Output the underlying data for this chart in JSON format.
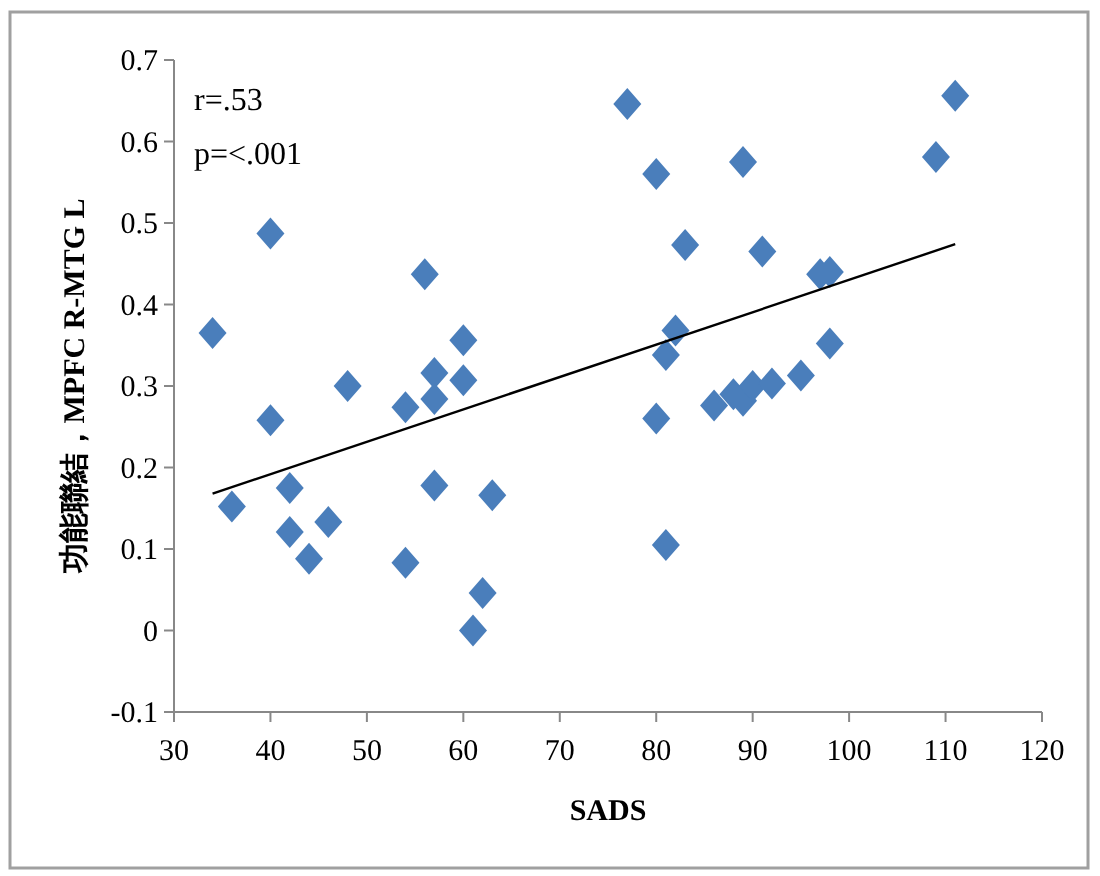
{
  "chart_data": {
    "type": "scatter",
    "xlabel": "SADS",
    "ylabel": "功能聯結，MPFC R-MTG L",
    "annotations": [
      "r=.53",
      "p=<.001"
    ],
    "xlim": [
      30,
      120
    ],
    "xticks": [
      30,
      40,
      50,
      60,
      70,
      80,
      90,
      100,
      110,
      120
    ],
    "ylim": [
      -0.1,
      0.7
    ],
    "yticks": [
      -0.1,
      0,
      0.1,
      0.2,
      0.3,
      0.4,
      0.5,
      0.6,
      0.7
    ],
    "grid": false,
    "marker": "diamond",
    "series": [
      {
        "color": "#4a7ebb",
        "x": [
          34,
          36,
          40,
          40,
          42,
          42,
          44,
          46,
          48,
          54,
          54,
          56,
          57,
          57,
          57,
          60,
          60,
          61,
          62,
          63,
          77,
          80,
          80,
          81,
          81,
          82,
          83,
          86,
          88,
          89,
          89,
          90,
          91,
          92,
          95,
          97,
          98,
          98,
          109,
          111
        ],
        "values": [
          0.365,
          0.152,
          0.487,
          0.258,
          0.175,
          0.121,
          0.088,
          0.133,
          0.3,
          0.274,
          0.083,
          0.437,
          0.316,
          0.284,
          0.178,
          0.356,
          0.307,
          0.0,
          0.046,
          0.166,
          0.646,
          0.56,
          0.26,
          0.105,
          0.338,
          0.368,
          0.473,
          0.276,
          0.29,
          0.282,
          0.575,
          0.3,
          0.465,
          0.303,
          0.313,
          0.437,
          0.44,
          0.352,
          0.581,
          0.656
        ]
      },
      {
        "type": "line",
        "color": "#000000",
        "marker": "none",
        "x": [
          34,
          111
        ],
        "values": [
          0.168,
          0.474
        ]
      }
    ]
  }
}
